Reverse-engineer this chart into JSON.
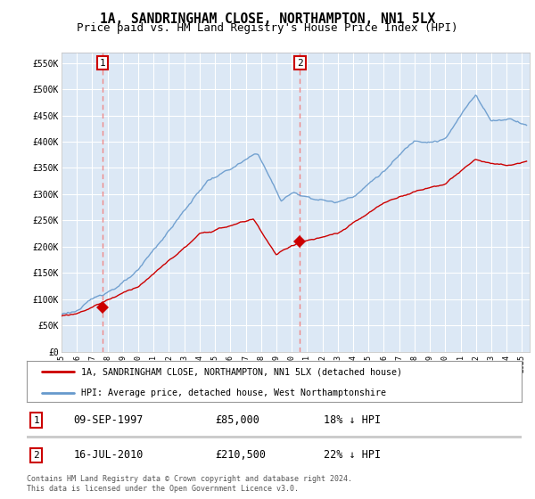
{
  "title": "1A, SANDRINGHAM CLOSE, NORTHAMPTON, NN1 5LX",
  "subtitle": "Price paid vs. HM Land Registry's House Price Index (HPI)",
  "ylabel_ticks": [
    "£0",
    "£50K",
    "£100K",
    "£150K",
    "£200K",
    "£250K",
    "£300K",
    "£350K",
    "£400K",
    "£450K",
    "£500K",
    "£550K"
  ],
  "ytick_vals": [
    0,
    50000,
    100000,
    150000,
    200000,
    250000,
    300000,
    350000,
    400000,
    450000,
    500000,
    550000
  ],
  "ylim": [
    0,
    570000
  ],
  "xlim_start": 1995.0,
  "xlim_end": 2025.5,
  "xtick_years": [
    1995,
    1996,
    1997,
    1998,
    1999,
    2000,
    2001,
    2002,
    2003,
    2004,
    2005,
    2006,
    2007,
    2008,
    2009,
    2010,
    2011,
    2012,
    2013,
    2014,
    2015,
    2016,
    2017,
    2018,
    2019,
    2020,
    2021,
    2022,
    2023,
    2024,
    2025
  ],
  "sale1_x": 1997.69,
  "sale1_y": 85000,
  "sale1_label": "1",
  "sale1_date": "09-SEP-1997",
  "sale1_price": "£85,000",
  "sale1_hpi": "18% ↓ HPI",
  "sale2_x": 2010.54,
  "sale2_y": 210500,
  "sale2_label": "2",
  "sale2_date": "16-JUL-2010",
  "sale2_price": "£210,500",
  "sale2_hpi": "22% ↓ HPI",
  "red_line_color": "#cc0000",
  "blue_line_color": "#6699cc",
  "marker_color": "#cc0000",
  "dashed_line_color": "#ee8888",
  "legend_label_red": "1A, SANDRINGHAM CLOSE, NORTHAMPTON, NN1 5LX (detached house)",
  "legend_label_blue": "HPI: Average price, detached house, West Northamptonshire",
  "footer": "Contains HM Land Registry data © Crown copyright and database right 2024.\nThis data is licensed under the Open Government Licence v3.0.",
  "background_color": "#ffffff",
  "plot_bg_color": "#dce8f5",
  "grid_color": "#ffffff",
  "title_fontsize": 10.5,
  "subtitle_fontsize": 9
}
